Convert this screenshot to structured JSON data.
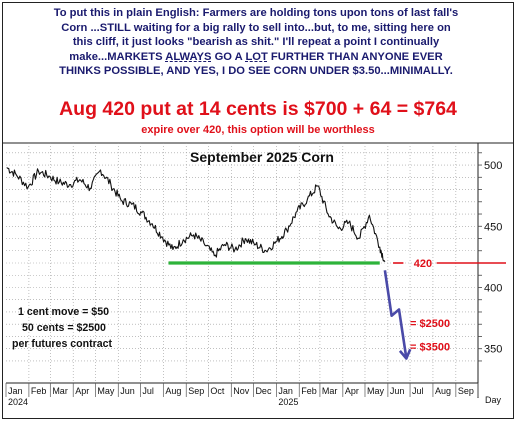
{
  "commentary": {
    "line1": "To put this in plain English: Farmers are holding tons upon tons of last fall's",
    "line2": "Corn ...STILL waiting for a big rally to sell into...but, to me, sitting here on",
    "line3": "this cliff, it just looks \"bearish as shit.\" I'll repeat a point I continually",
    "line4a": "make...MARKETS ",
    "line4b": "ALWAYS",
    "line4c": " GO A ",
    "line4d": "LOT",
    "line4e": " FURTHER THAN ANYONE EVER",
    "line5": "THINKS POSSIBLE, AND YES, I DO SEE CORN UNDER $3.50...MINIMALLY."
  },
  "headline": "Aug 420 put at 14 cents is $700 + 64 = $764",
  "subline": "expire over 420, this option will be worthless",
  "notes": {
    "line1": "1 cent move = $50",
    "line2": "50 cents = $2500",
    "line3": "per futures contract"
  },
  "colors": {
    "text_navy": "#1a1a6e",
    "headline_red": "#e0101a",
    "support_green": "#2db33a",
    "projection_blue": "#4a4aa8",
    "price_black": "#111111"
  },
  "chart_data": {
    "type": "line",
    "title": "September 2025 Corn",
    "xlabel": "Day",
    "ylabel": "",
    "x_tick_labels": [
      "Jan",
      "Feb",
      "Mar",
      "Apr",
      "May",
      "Jun",
      "Jul",
      "Aug",
      "Sep",
      "Oct",
      "Nov",
      "Dec",
      "Jan",
      "Feb",
      "Mar",
      "Apr",
      "May",
      "Jun",
      "Jul",
      "Aug",
      "Sep"
    ],
    "year_labels": [
      "2024",
      "2025"
    ],
    "y_ticks": [
      350,
      400,
      450,
      500
    ],
    "ylim": [
      322,
      518
    ],
    "grid": true,
    "price_series": {
      "name": "",
      "x": [
        "2024-01-02",
        "2024-01-15",
        "2024-01-31",
        "2024-02-14",
        "2024-02-28",
        "2024-03-13",
        "2024-03-27",
        "2024-04-10",
        "2024-04-24",
        "2024-05-08",
        "2024-05-22",
        "2024-06-05",
        "2024-06-19",
        "2024-07-03",
        "2024-07-17",
        "2024-07-31",
        "2024-08-14",
        "2024-08-28",
        "2024-09-11",
        "2024-09-25",
        "2024-10-09",
        "2024-10-23",
        "2024-11-06",
        "2024-11-20",
        "2024-12-04",
        "2024-12-18",
        "2025-01-02",
        "2025-01-15",
        "2025-01-29",
        "2025-02-12",
        "2025-02-26",
        "2025-03-12",
        "2025-03-26",
        "2025-04-09",
        "2025-04-23",
        "2025-05-07",
        "2025-05-21",
        "2025-05-28"
      ],
      "values": [
        498,
        492,
        482,
        495,
        491,
        486,
        484,
        488,
        481,
        496,
        484,
        471,
        468,
        461,
        452,
        441,
        431,
        439,
        443,
        436,
        426,
        435,
        431,
        440,
        435,
        430,
        438,
        447,
        462,
        472,
        483,
        460,
        448,
        453,
        440,
        459,
        433,
        421
      ]
    },
    "support_line": {
      "y": 420,
      "x_start": "2024-08-08",
      "x_end": "2025-05-21"
    },
    "projection": {
      "x": [
        "2025-05-28",
        "2025-06-06",
        "2025-06-16",
        "2025-06-26"
      ],
      "values": [
        414,
        377,
        382,
        342
      ]
    },
    "annotations": [
      {
        "text": "420",
        "y": 420
      },
      {
        "text": "= $2500",
        "y": 371
      },
      {
        "text": "= $3500",
        "y": 352
      }
    ]
  }
}
